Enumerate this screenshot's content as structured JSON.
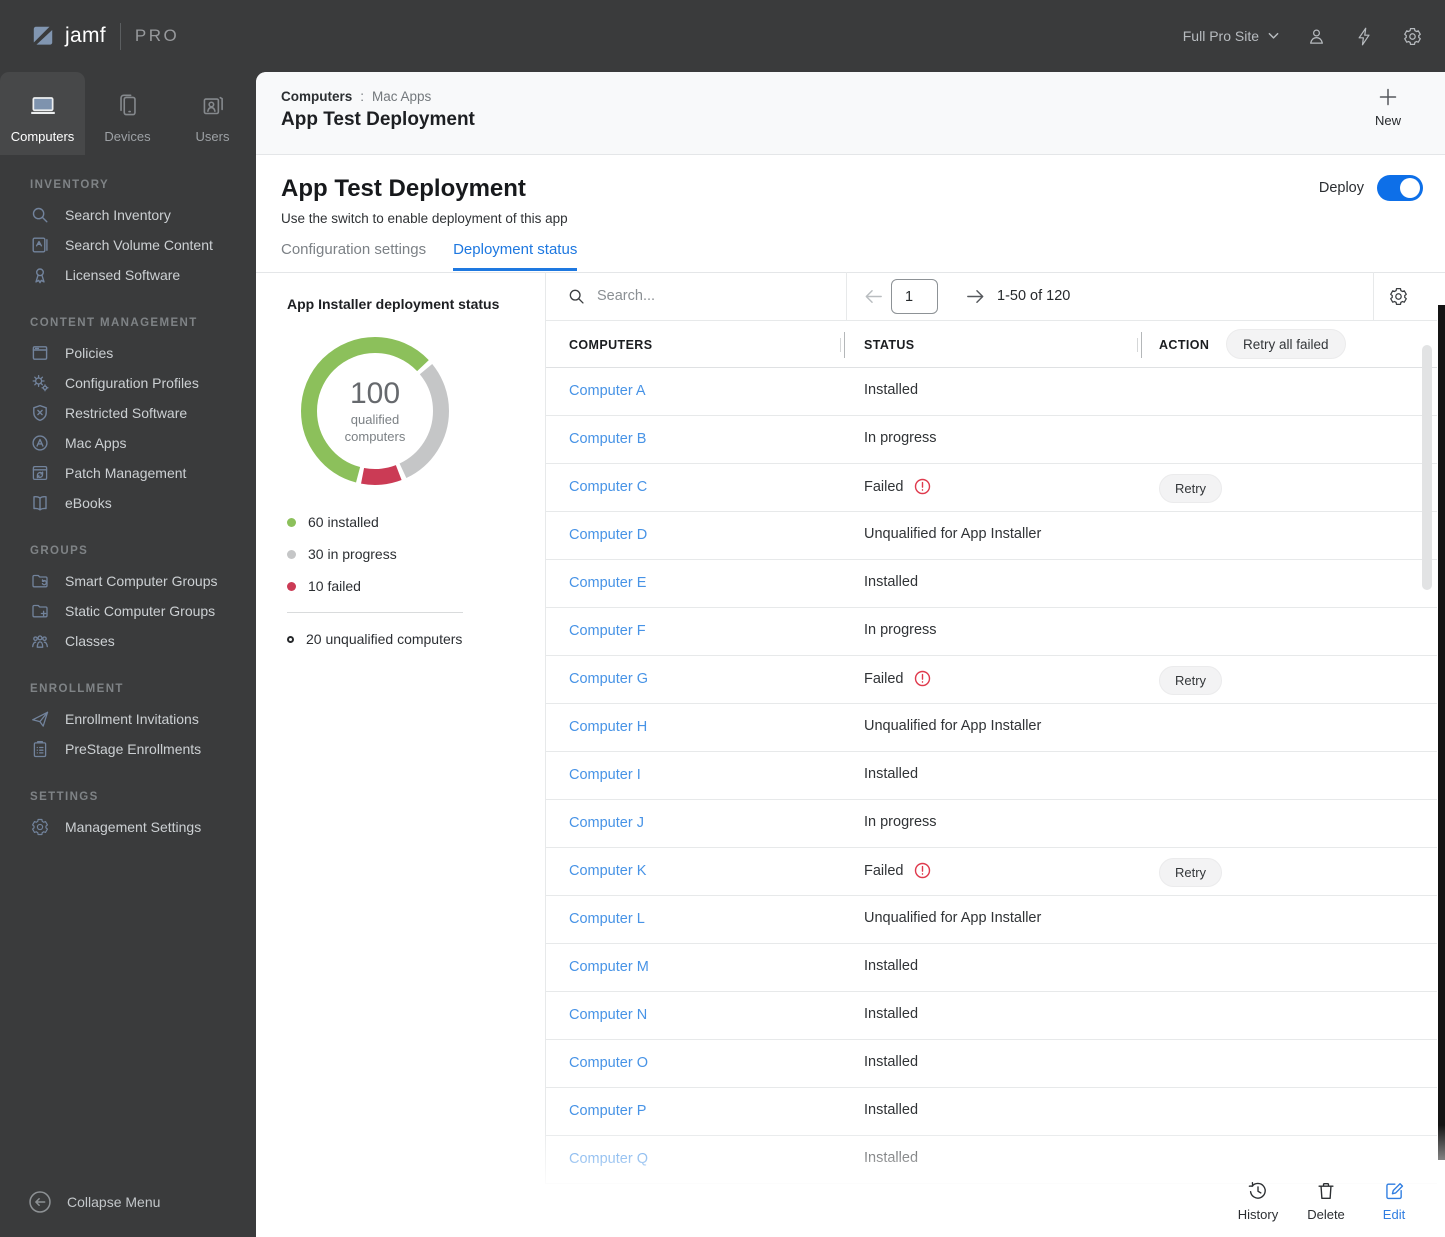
{
  "colors": {
    "accent": "#1e78e0",
    "link": "#4793e6",
    "toggle_on": "#0d6fe8",
    "installed_green": "#8cc05b",
    "in_progress_gray": "#c5c6c7",
    "failed_red": "#cb3b55"
  },
  "topbar": {
    "brand_name": "jamf",
    "brand_suffix": "PRO",
    "site_selector": "Full Pro Site",
    "action_icons": [
      "user-icon",
      "lightning-icon",
      "gear-icon"
    ]
  },
  "context_tabs": [
    {
      "label": "Computers",
      "icon": "laptop-icon",
      "active": true
    },
    {
      "label": "Devices",
      "icon": "devices-icon",
      "active": false
    },
    {
      "label": "Users",
      "icon": "users-icon",
      "active": false
    }
  ],
  "sidebar": {
    "sections": [
      {
        "title": "INVENTORY",
        "items": [
          {
            "label": "Search Inventory",
            "icon": "search-icon"
          },
          {
            "label": "Search Volume Content",
            "icon": "volume-content-icon"
          },
          {
            "label": "Licensed Software",
            "icon": "licensed-software-icon"
          }
        ]
      },
      {
        "title": "CONTENT MANAGEMENT",
        "items": [
          {
            "label": "Policies",
            "icon": "policies-icon"
          },
          {
            "label": "Configuration Profiles",
            "icon": "configuration-profiles-icon"
          },
          {
            "label": "Restricted Software",
            "icon": "restricted-software-icon"
          },
          {
            "label": "Mac Apps",
            "icon": "mac-apps-icon"
          },
          {
            "label": "Patch Management",
            "icon": "patch-management-icon"
          },
          {
            "label": "eBooks",
            "icon": "ebooks-icon"
          }
        ]
      },
      {
        "title": "GROUPS",
        "items": [
          {
            "label": "Smart Computer Groups",
            "icon": "smart-groups-icon"
          },
          {
            "label": "Static Computer Groups",
            "icon": "static-groups-icon"
          },
          {
            "label": "Classes",
            "icon": "classes-icon"
          }
        ]
      },
      {
        "title": "ENROLLMENT",
        "items": [
          {
            "label": "Enrollment Invitations",
            "icon": "enrollment-invitations-icon"
          },
          {
            "label": "PreStage Enrollments",
            "icon": "prestage-enrollments-icon"
          }
        ]
      },
      {
        "title": "SETTINGS",
        "items": [
          {
            "label": "Management Settings",
            "icon": "management-settings-icon"
          }
        ]
      }
    ],
    "collapse_label": "Collapse Menu"
  },
  "header": {
    "breadcrumb": [
      "Computers",
      "Mac Apps"
    ],
    "breadcrumb_separator": ":",
    "title": "App Test Deployment",
    "new_button": "New"
  },
  "page": {
    "title": "App Test Deployment",
    "subtitle": "Use the switch to enable deployment of this app",
    "deploy_label": "Deploy",
    "deploy_enabled": true,
    "tabs": [
      {
        "label": "Configuration settings",
        "active": false
      },
      {
        "label": "Deployment status",
        "active": true
      }
    ]
  },
  "chart_data": {
    "type": "donut",
    "title": "App Installer deployment status",
    "center_value": "100",
    "center_label_line1": "qualified",
    "center_label_line2": "computers",
    "segments": [
      {
        "name": "installed",
        "value": 60,
        "label": "60 installed",
        "color": "#8cc05b"
      },
      {
        "name": "in_progress",
        "value": 30,
        "label": "30 in progress",
        "color": "#c5c6c7"
      },
      {
        "name": "failed",
        "value": 10,
        "label": "10 failed",
        "color": "#cb3b55"
      }
    ],
    "unqualified": {
      "value": 20,
      "label": "20 unqualified computers"
    }
  },
  "table": {
    "search_placeholder": "Search...",
    "page_value": "1",
    "range_text": "1-50 of 120",
    "columns": [
      "COMPUTERS",
      "STATUS",
      "ACTION"
    ],
    "retry_all_label": "Retry all failed",
    "retry_label": "Retry",
    "rows": [
      {
        "computer": "Computer A",
        "status": "Installed"
      },
      {
        "computer": "Computer B",
        "status": "In progress"
      },
      {
        "computer": "Computer C",
        "status": "Failed"
      },
      {
        "computer": "Computer D",
        "status": "Unqualified for App Installer"
      },
      {
        "computer": "Computer E",
        "status": "Installed"
      },
      {
        "computer": "Computer F",
        "status": "In progress"
      },
      {
        "computer": "Computer G",
        "status": "Failed"
      },
      {
        "computer": "Computer H",
        "status": "Unqualified for App Installer"
      },
      {
        "computer": "Computer I",
        "status": "Installed"
      },
      {
        "computer": "Computer J",
        "status": "In progress"
      },
      {
        "computer": "Computer K",
        "status": "Failed"
      },
      {
        "computer": "Computer L",
        "status": "Unqualified for App Installer"
      },
      {
        "computer": "Computer M",
        "status": "Installed"
      },
      {
        "computer": "Computer N",
        "status": "Installed"
      },
      {
        "computer": "Computer O",
        "status": "Installed"
      },
      {
        "computer": "Computer P",
        "status": "Installed"
      },
      {
        "computer": "Computer Q",
        "status": "Installed"
      }
    ]
  },
  "footer_actions": [
    {
      "label": "History",
      "icon": "history-icon",
      "active": false
    },
    {
      "label": "Delete",
      "icon": "delete-icon",
      "active": false
    },
    {
      "label": "Edit",
      "icon": "edit-icon",
      "active": true
    }
  ]
}
